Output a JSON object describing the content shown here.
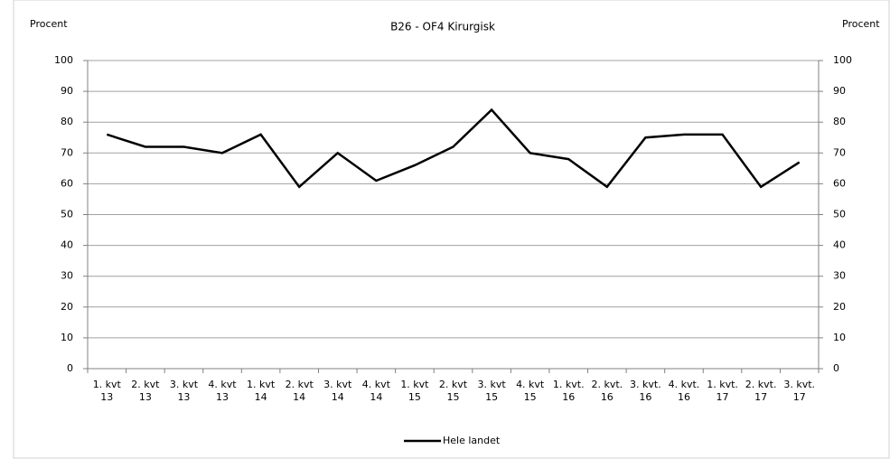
{
  "chart_data": {
    "type": "line",
    "title": "B26 - OF4 Kirurgisk",
    "y_label": "Procent",
    "y2_label": "Procent",
    "categories": [
      "1. kvt 13",
      "2. kvt 13",
      "3. kvt 13",
      "4. kvt 13",
      "1. kvt 14",
      "2. kvt 14",
      "3. kvt 14",
      "4. kvt 14",
      "1. kvt 15",
      "2. kvt 15",
      "3. kvt 15",
      "4. kvt 15",
      "1. kvt. 16",
      "2. kvt. 16",
      "3. kvt. 16",
      "4. kvt. 16",
      "1. kvt. 17",
      "2. kvt. 17",
      "3. kvt. 17"
    ],
    "series": [
      {
        "name": "Hele landet",
        "color": "#000000",
        "values": [
          76,
          72,
          72,
          70,
          76,
          59,
          70,
          61,
          66,
          72,
          84,
          70,
          68,
          59,
          75,
          76,
          76,
          59,
          67
        ]
      }
    ],
    "ylim": [
      0,
      100
    ],
    "yticks": [
      0,
      10,
      20,
      30,
      40,
      50,
      60,
      70,
      80,
      90,
      100
    ],
    "y2lim": [
      0,
      100
    ],
    "y2ticks": [
      0,
      10,
      20,
      30,
      40,
      50,
      60,
      70,
      80,
      90,
      100
    ],
    "grid": true,
    "legend": "bottom"
  }
}
